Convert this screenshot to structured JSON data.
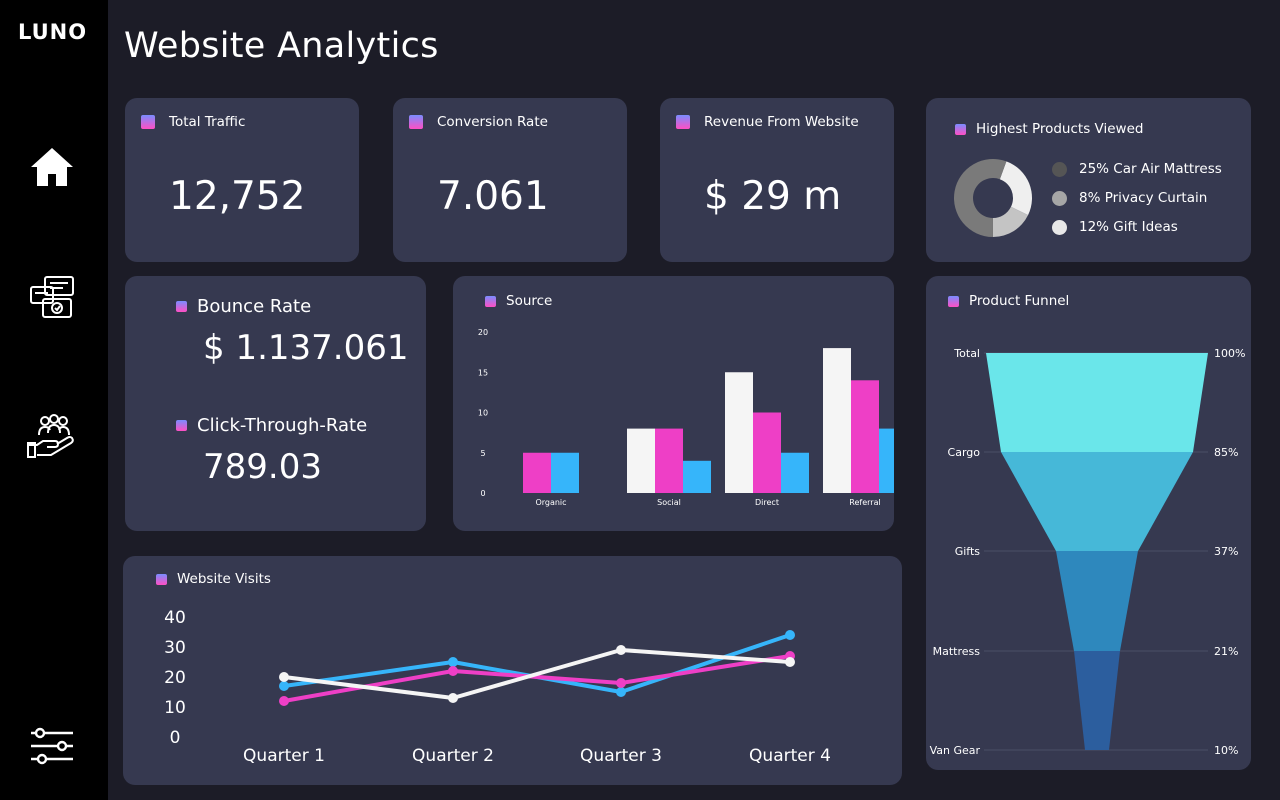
{
  "app": {
    "logo": "LUNO",
    "title": "Website Analytics"
  },
  "sidebar": {
    "items": [
      {
        "name": "home-icon"
      },
      {
        "name": "chat-icon"
      },
      {
        "name": "users-icon"
      },
      {
        "name": "settings-sliders-icon"
      }
    ]
  },
  "kpis": {
    "traffic": {
      "label": "Total Traffic",
      "value": "12,752"
    },
    "conversion": {
      "label": "Conversion Rate",
      "value": "7.061"
    },
    "revenue": {
      "label": "Revenue From Website",
      "value": "$ 29 m"
    },
    "bounce": {
      "label": "Bounce Rate",
      "value": "$ 1.137.061"
    },
    "ctr": {
      "label": "Click-Through-Rate",
      "value": "789.03"
    }
  },
  "products": {
    "label": "Highest Products Viewed",
    "items": [
      {
        "text": "25% Car Air Mattress",
        "color": "#555555"
      },
      {
        "text": "8% Privacy Curtain",
        "color": "#a6a6a6"
      },
      {
        "text": "12% Gift Ideas",
        "color": "#e8e8e8"
      }
    ]
  },
  "colors": {
    "pink": "#ee3fc6",
    "blue": "#36b5fa",
    "white": "#f5f5f5",
    "card": "#363950"
  },
  "chart_data": [
    {
      "id": "source",
      "type": "bar",
      "title": "Source",
      "categories": [
        "Organic",
        "Social",
        "Direct",
        "Referral"
      ],
      "yticks": [
        "0",
        "5",
        "10",
        "15",
        "20"
      ],
      "ylim": [
        0,
        20
      ],
      "series": [
        {
          "name": "white",
          "color": "#f5f5f5",
          "values": [
            0,
            8,
            15,
            18
          ]
        },
        {
          "name": "pink",
          "color": "#ee3fc6",
          "values": [
            5,
            8,
            10,
            14
          ]
        },
        {
          "name": "blue",
          "color": "#36b5fa",
          "values": [
            5,
            4,
            5,
            8
          ]
        }
      ]
    },
    {
      "id": "visits",
      "type": "line",
      "title": "Website Visits",
      "categories": [
        "Quarter 1",
        "Quarter 2",
        "Quarter 3",
        "Quarter 4"
      ],
      "yticks": [
        "0",
        "10",
        "20",
        "30",
        "40"
      ],
      "ylim": [
        0,
        40
      ],
      "series": [
        {
          "name": "blue",
          "color": "#36b5fa",
          "values": [
            17,
            25,
            15,
            34
          ]
        },
        {
          "name": "pink",
          "color": "#ee3fc6",
          "values": [
            12,
            22,
            18,
            27
          ]
        },
        {
          "name": "white",
          "color": "#f5f5f5",
          "values": [
            20,
            13,
            29,
            25
          ]
        }
      ]
    },
    {
      "id": "funnel",
      "type": "funnel",
      "title": "Product Funnel",
      "stages": [
        {
          "label": "Total",
          "value": "100%",
          "color": "#6ae6ea"
        },
        {
          "label": "Cargo",
          "value": "85%",
          "color": "#46b8d8"
        },
        {
          "label": "Gifts",
          "value": "37%",
          "color": "#2e88bd"
        },
        {
          "label": "Mattress",
          "value": "21%",
          "color": "#2c5e9e"
        },
        {
          "label": "Van Gear",
          "value": "10%",
          "color": ""
        }
      ]
    },
    {
      "id": "donut",
      "type": "pie",
      "title": "Highest Products Viewed",
      "slices": [
        {
          "name": "Car Air Mattress",
          "value": 25,
          "color": "#7a7a7a"
        },
        {
          "name": "Privacy Curtain",
          "value": 8,
          "color": "#c4c4c4"
        },
        {
          "name": "Gift Ideas",
          "value": 12,
          "color": "#efefef"
        }
      ]
    }
  ]
}
